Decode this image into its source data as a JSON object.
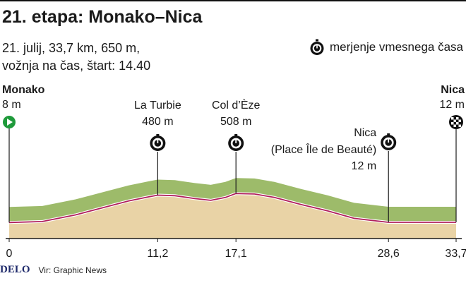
{
  "title": "21. etapa: Monako–Nica",
  "subtitle_lines": [
    "21. julij, 33,7 km, 650 m,",
    "vožnja na čas, štart: 14.40"
  ],
  "legend": {
    "label": "merjenje vmesnega časa",
    "icon": "stopwatch-icon"
  },
  "footer": {
    "logo": "DELO",
    "source": "Vir: Graphic News"
  },
  "colors": {
    "terrain": "#e9d3a6",
    "hills": "#9dbb6a",
    "route": "#b0205c",
    "start": "#1f9a3b"
  },
  "chart_data": {
    "type": "area",
    "title": "21. etapa: Monako–Nica",
    "xlabel": "",
    "ylabel": "",
    "xlim": [
      0,
      33.7
    ],
    "ylim": [
      0,
      700
    ],
    "x_ticks": [
      {
        "value": 0,
        "label": "0"
      },
      {
        "value": 11.2,
        "label": "11,2"
      },
      {
        "value": 17.1,
        "label": "17,1"
      },
      {
        "value": 28.6,
        "label": "28,6"
      },
      {
        "value": 33.7,
        "label": "33,7"
      }
    ],
    "series": [
      {
        "x": [
          0,
          2.5,
          5,
          7,
          9,
          10.5,
          11.2,
          12.5,
          14,
          15.2,
          16.3,
          17.1,
          18.5,
          20,
          22,
          24,
          26,
          28.6,
          30,
          32,
          33.7
        ],
        "y": [
          8,
          25,
          140,
          260,
          380,
          450,
          480,
          470,
          420,
          390,
          440,
          508,
          500,
          440,
          320,
          210,
          80,
          12,
          12,
          12,
          12
        ]
      }
    ],
    "points": [
      {
        "km": 0,
        "name": "Monako",
        "elevation": "8 m",
        "kind": "start"
      },
      {
        "km": 11.2,
        "name": "La Turbie",
        "elevation": "480 m",
        "kind": "checkpoint"
      },
      {
        "km": 17.1,
        "name": "Col d’Èze",
        "elevation": "508 m",
        "kind": "checkpoint"
      },
      {
        "km": 28.6,
        "name": "Nica",
        "name2": "(Place Île de Beauté)",
        "elevation": "12 m",
        "kind": "checkpoint"
      },
      {
        "km": 33.7,
        "name": "Nica",
        "elevation": "12 m",
        "kind": "finish"
      }
    ]
  }
}
